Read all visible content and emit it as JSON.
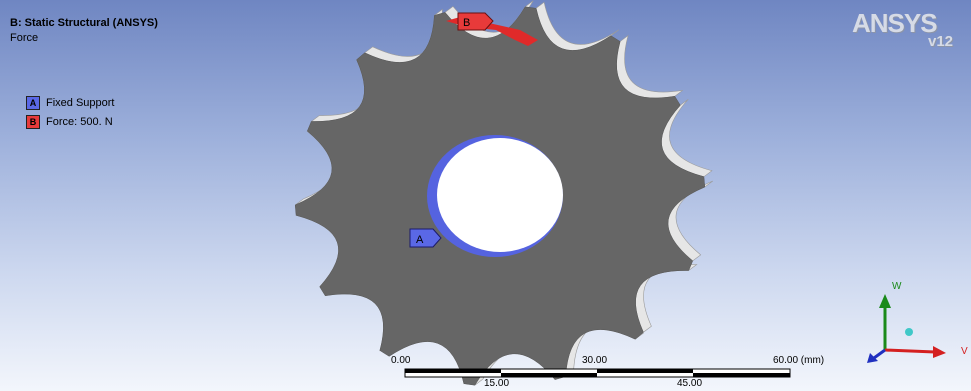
{
  "header": {
    "title": "B: Static Structural (ANSYS)",
    "subtitle": "Force"
  },
  "legend": {
    "items": [
      {
        "key": "A",
        "label": "Fixed Support",
        "color": "#5a68e6"
      },
      {
        "key": "B",
        "label": "Force: 500. N",
        "color": "#e83a3a"
      }
    ]
  },
  "model": {
    "body_color": "#666666",
    "tooth_count": 14,
    "markers": {
      "fixed_support": "A",
      "force": "B"
    }
  },
  "logo": {
    "name": "ANSYS",
    "version": "v12"
  },
  "scale_bar": {
    "top_labels": [
      "0.00",
      "30.00",
      "60.00 (mm)"
    ],
    "bottom_labels": [
      "15.00",
      "45.00"
    ]
  },
  "triad": {
    "axis_w": "W",
    "axis_v": "V"
  }
}
